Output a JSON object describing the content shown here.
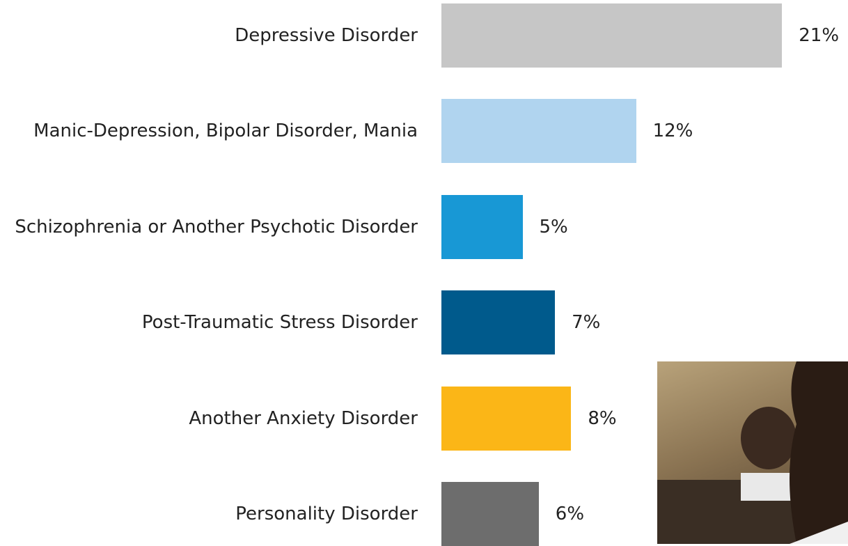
{
  "chart_data": {
    "type": "bar",
    "orientation": "horizontal",
    "categories": [
      "Depressive Disorder",
      "Manic-Depression, Bipolar Disorder, Mania",
      "Schizophrenia or Another Psychotic Disorder",
      "Post-Traumatic Stress Disorder",
      "Another Anxiety Disorder",
      "Personality Disorder"
    ],
    "values": [
      21,
      12,
      5,
      7,
      8,
      6
    ],
    "value_labels": [
      "21%",
      "12%",
      "5%",
      "7%",
      "8%",
      "6%"
    ],
    "colors": [
      "#c6c6c6",
      "#b0d4ef",
      "#1898d5",
      "#005a8c",
      "#fbb617",
      "#6d6d6d"
    ]
  }
}
